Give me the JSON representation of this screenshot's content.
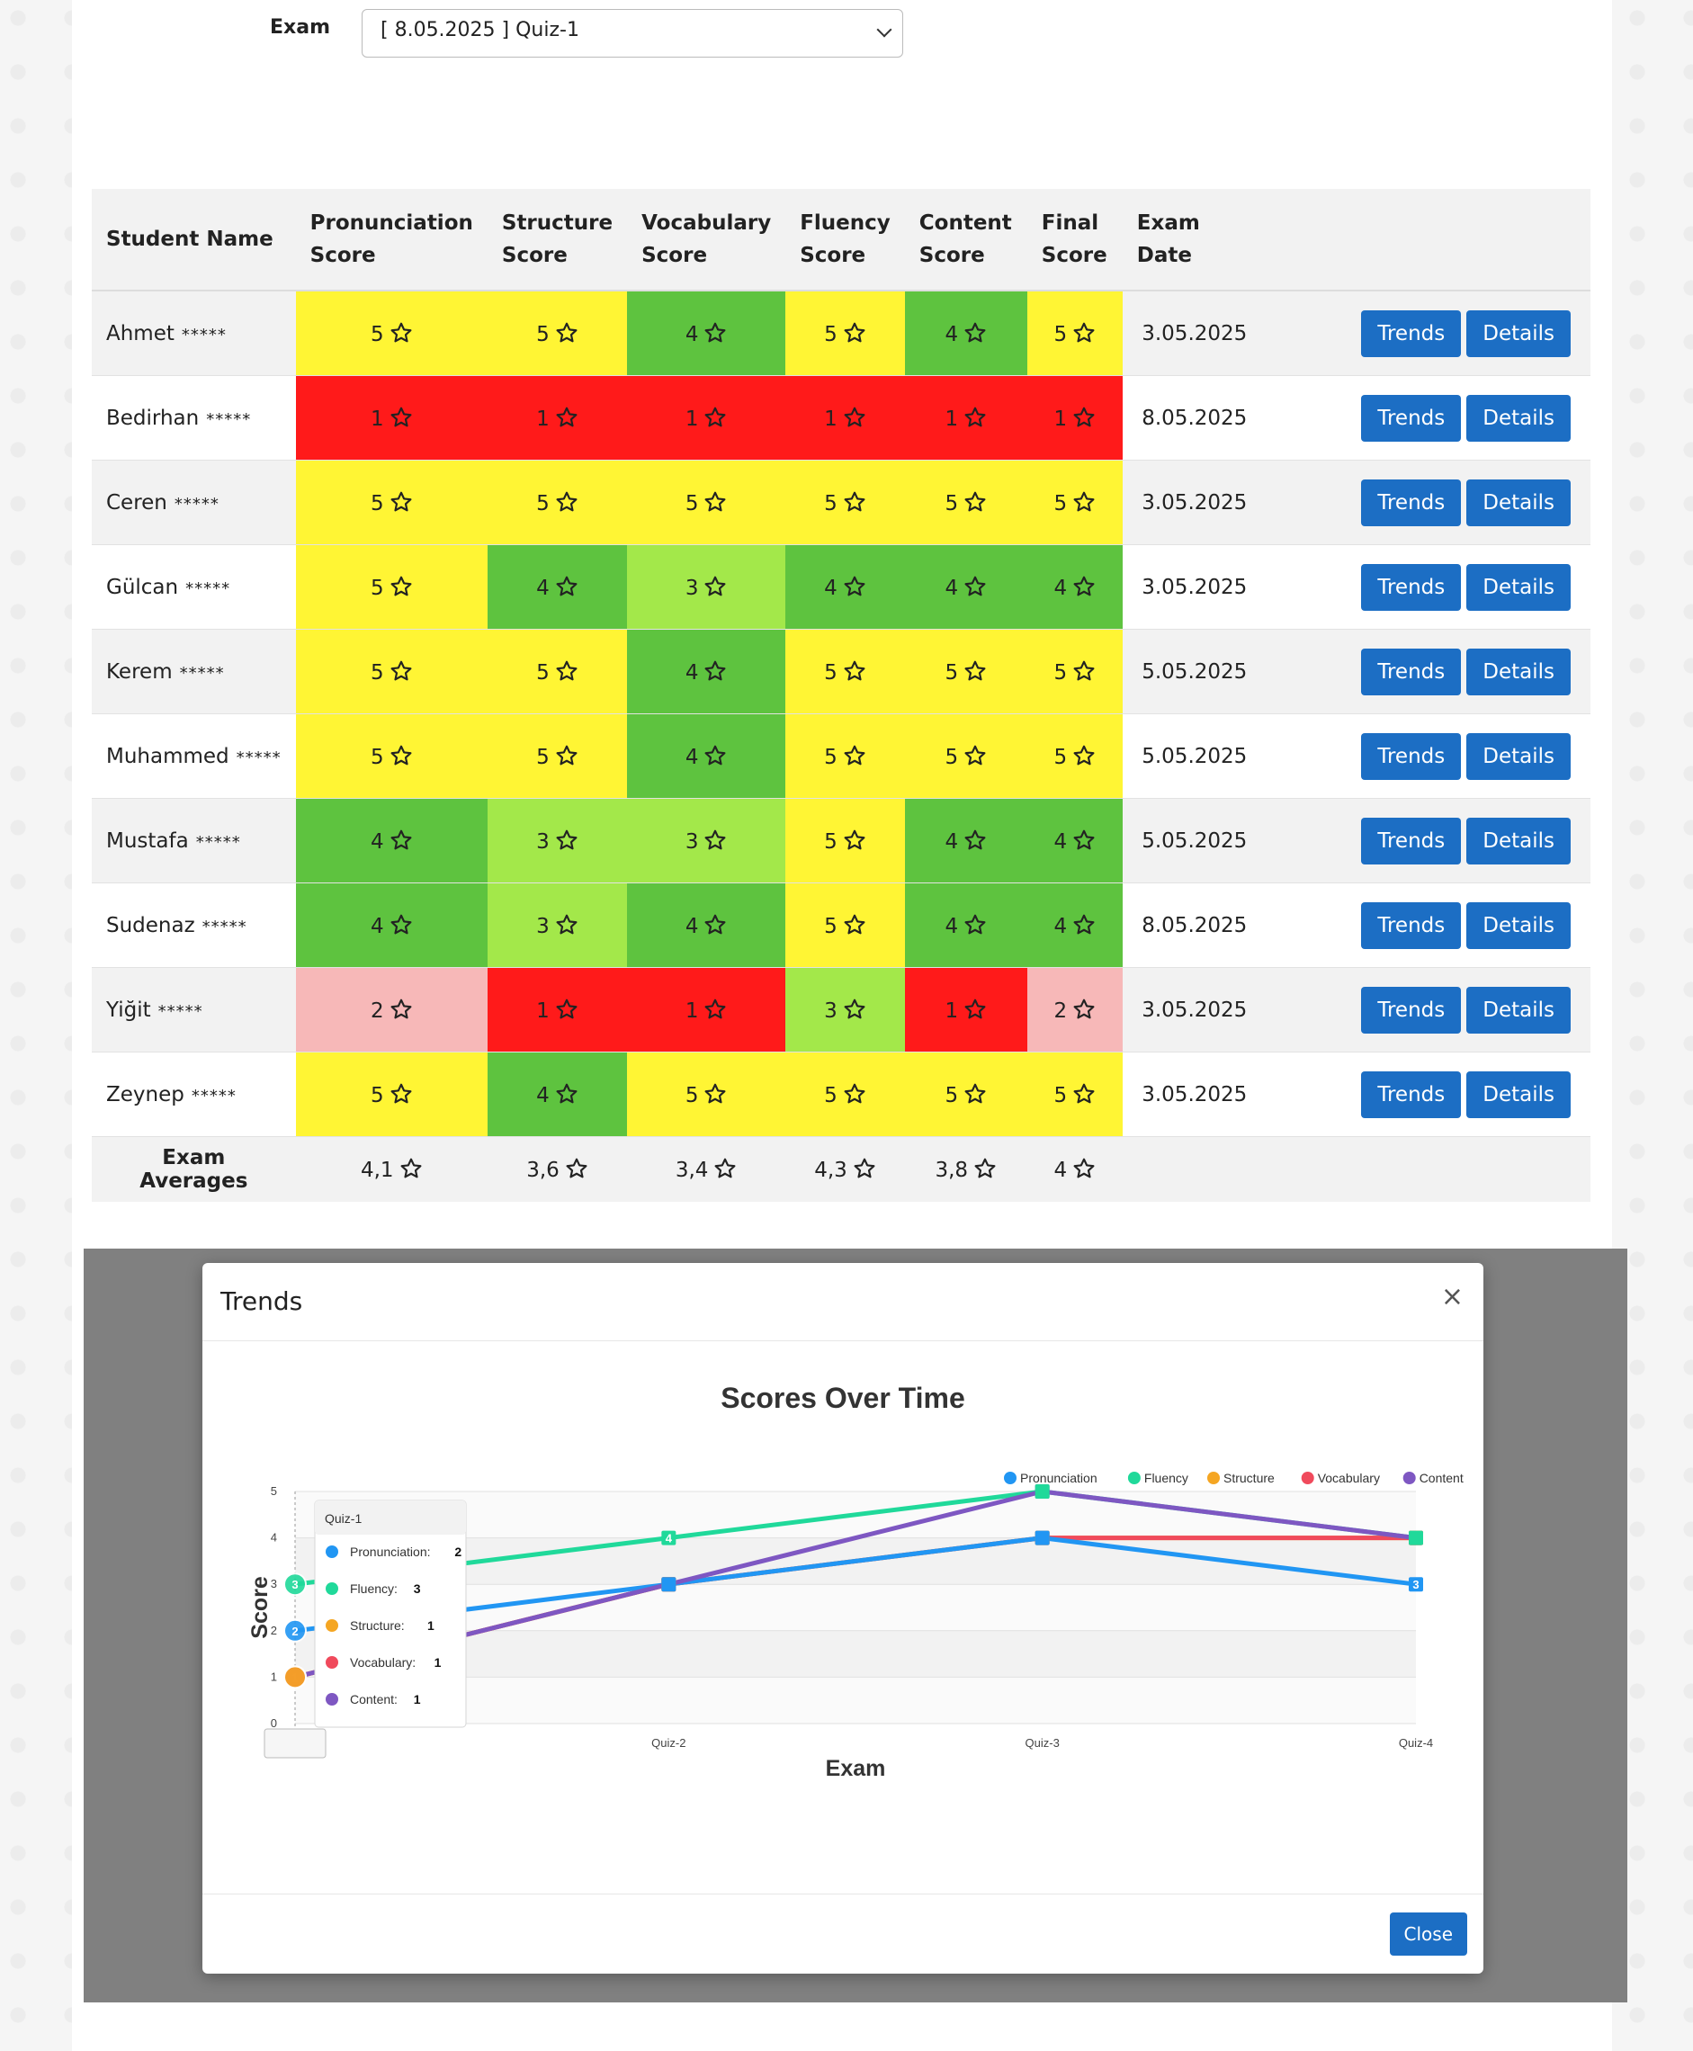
{
  "filter": {
    "label": "Exam",
    "selected": "[ 8.05.2025 ] Quiz-1"
  },
  "table": {
    "headers": [
      "Student Name",
      "Pronunciation Score",
      "Structure Score",
      "Vocabulary Score",
      "Fluency Score",
      "Content Score",
      "Final Score",
      "Exam Date"
    ],
    "mask": "*****",
    "trends_label": "Trends",
    "details_label": "Details",
    "rows": [
      {
        "name": "Ahmet",
        "scores": [
          5,
          5,
          4,
          5,
          4,
          5
        ],
        "date": "3.05.2025"
      },
      {
        "name": "Bedirhan",
        "scores": [
          1,
          1,
          1,
          1,
          1,
          1
        ],
        "date": "8.05.2025"
      },
      {
        "name": "Ceren",
        "scores": [
          5,
          5,
          5,
          5,
          5,
          5
        ],
        "date": "3.05.2025"
      },
      {
        "name": "Gülcan",
        "scores": [
          5,
          4,
          3,
          4,
          4,
          4
        ],
        "date": "3.05.2025"
      },
      {
        "name": "Kerem",
        "scores": [
          5,
          5,
          4,
          5,
          5,
          5
        ],
        "date": "5.05.2025"
      },
      {
        "name": "Muhammed",
        "scores": [
          5,
          5,
          4,
          5,
          5,
          5
        ],
        "date": "5.05.2025"
      },
      {
        "name": "Mustafa",
        "scores": [
          4,
          3,
          3,
          5,
          4,
          4
        ],
        "date": "5.05.2025"
      },
      {
        "name": "Sudenaz",
        "scores": [
          4,
          3,
          4,
          5,
          4,
          4
        ],
        "date": "8.05.2025"
      },
      {
        "name": "Yiğit",
        "scores": [
          2,
          1,
          1,
          3,
          1,
          2
        ],
        "date": "3.05.2025"
      },
      {
        "name": "Zeynep",
        "scores": [
          5,
          4,
          5,
          5,
          5,
          5
        ],
        "date": "3.05.2025"
      }
    ],
    "averages_label": "Exam Averages",
    "averages": [
      "4,1",
      "3,6",
      "3,4",
      "4,3",
      "3,8",
      "4"
    ]
  },
  "score_colors": {
    "1": "#ff1a1a",
    "2": "#f7b8b8",
    "3": "#a3e84a",
    "4": "#5ec33f",
    "5": "#fff534"
  },
  "modal": {
    "title": "Trends",
    "close_x": "×",
    "close_label": "Close"
  },
  "chart_data": {
    "type": "line",
    "title": "Scores Over Time",
    "xlabel": "Exam",
    "ylabel": "Score",
    "x": [
      "Quiz-1",
      "Quiz-2",
      "Quiz-3",
      "Quiz-4"
    ],
    "ylim": [
      0,
      5
    ],
    "yticks": [
      0,
      1,
      2,
      3,
      4,
      5
    ],
    "legend_position": "top-right",
    "series": [
      {
        "name": "Pronunciation",
        "color": "#2196f3",
        "values": [
          2,
          3,
          4,
          3
        ]
      },
      {
        "name": "Fluency",
        "color": "#20d99a",
        "values": [
          3,
          4,
          5,
          4
        ]
      },
      {
        "name": "Structure",
        "color": "#f5a623",
        "values": [
          1,
          3,
          4,
          4
        ]
      },
      {
        "name": "Vocabulary",
        "color": "#f04a5c",
        "values": [
          1,
          3,
          4,
          4
        ]
      },
      {
        "name": "Content",
        "color": "#7e57c2",
        "values": [
          1,
          3,
          5,
          4
        ]
      }
    ],
    "tooltip": {
      "title": "Quiz-1",
      "items": [
        {
          "name": "Pronunciation",
          "value": "2"
        },
        {
          "name": "Fluency",
          "value": "3"
        },
        {
          "name": "Structure",
          "value": "1"
        },
        {
          "name": "Vocabulary",
          "value": "1"
        },
        {
          "name": "Content",
          "value": "1"
        }
      ]
    }
  }
}
